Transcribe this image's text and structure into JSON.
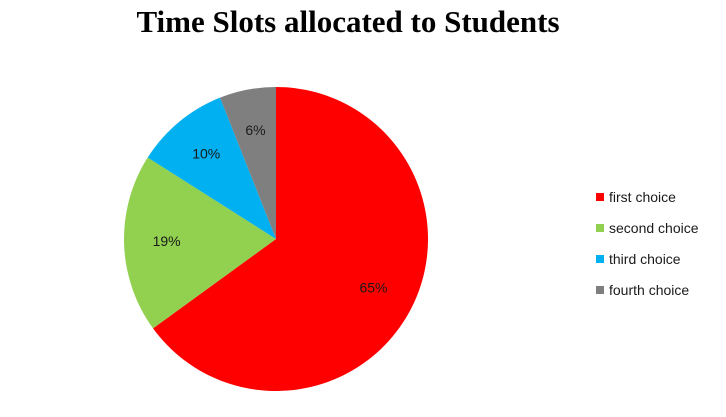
{
  "chart_data": {
    "type": "pie",
    "title": "Time Slots allocated to Students",
    "categories": [
      "first choice",
      "second choice",
      "third choice",
      "fourth choice"
    ],
    "values": [
      65,
      19,
      10,
      6
    ],
    "data_labels": [
      "65%",
      "19%",
      "10%",
      "6%"
    ],
    "colors": [
      "#ff0000",
      "#92d050",
      "#00b0f0",
      "#7f7f7f"
    ],
    "start_angle_deg": 0,
    "direction": "clockwise",
    "legend_position": "right"
  }
}
